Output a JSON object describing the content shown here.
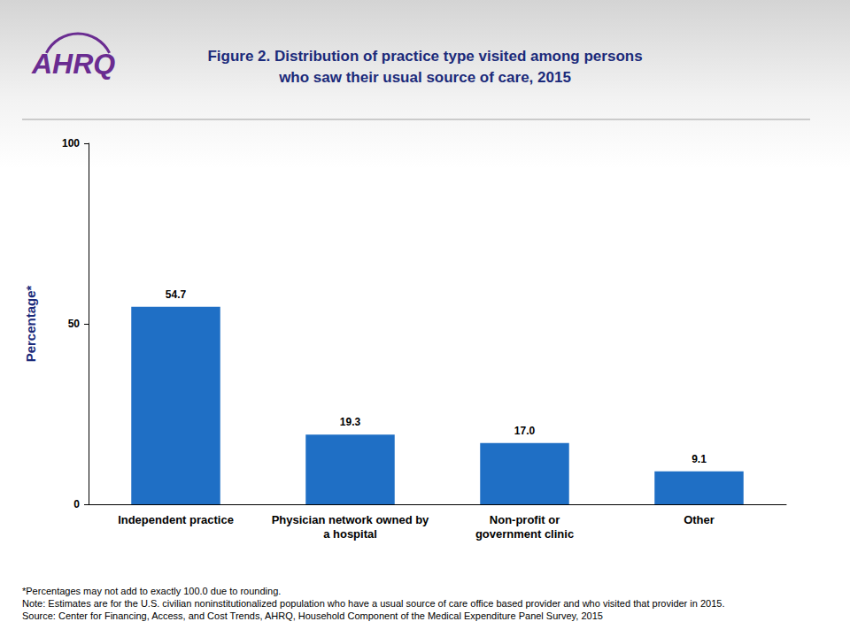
{
  "chart_data": {
    "type": "bar",
    "logo": "AHRQ",
    "title": "Figure 2. Distribution of practice type visited among persons\nwho saw their usual source of care, 2015",
    "ylabel": "Percentage*",
    "categories": [
      "Independent practice",
      "Physician network owned by\na hospital",
      "Non-profit or\ngovernment clinic",
      "Other"
    ],
    "values": [
      54.7,
      19.3,
      17.0,
      9.1
    ],
    "value_labels": [
      "54.7",
      "19.3",
      "17.0",
      "9.1"
    ],
    "color": "#1f6fc5",
    "ylim": [
      0,
      100
    ],
    "yticks": [
      0,
      50,
      100
    ],
    "grid": false,
    "data_labels": true,
    "notes": [
      "*Percentages may not add to exactly 100.0 due to rounding.",
      "Note: Estimates are for the U.S. civilian noninstitutionalized population who have a usual source of care office based provider and who visited that provider in 2015.",
      "Source: Center for Financing, Access, and Cost Trends, AHRQ, Household Component of the Medical Expenditure Panel Survey, 2015"
    ]
  }
}
